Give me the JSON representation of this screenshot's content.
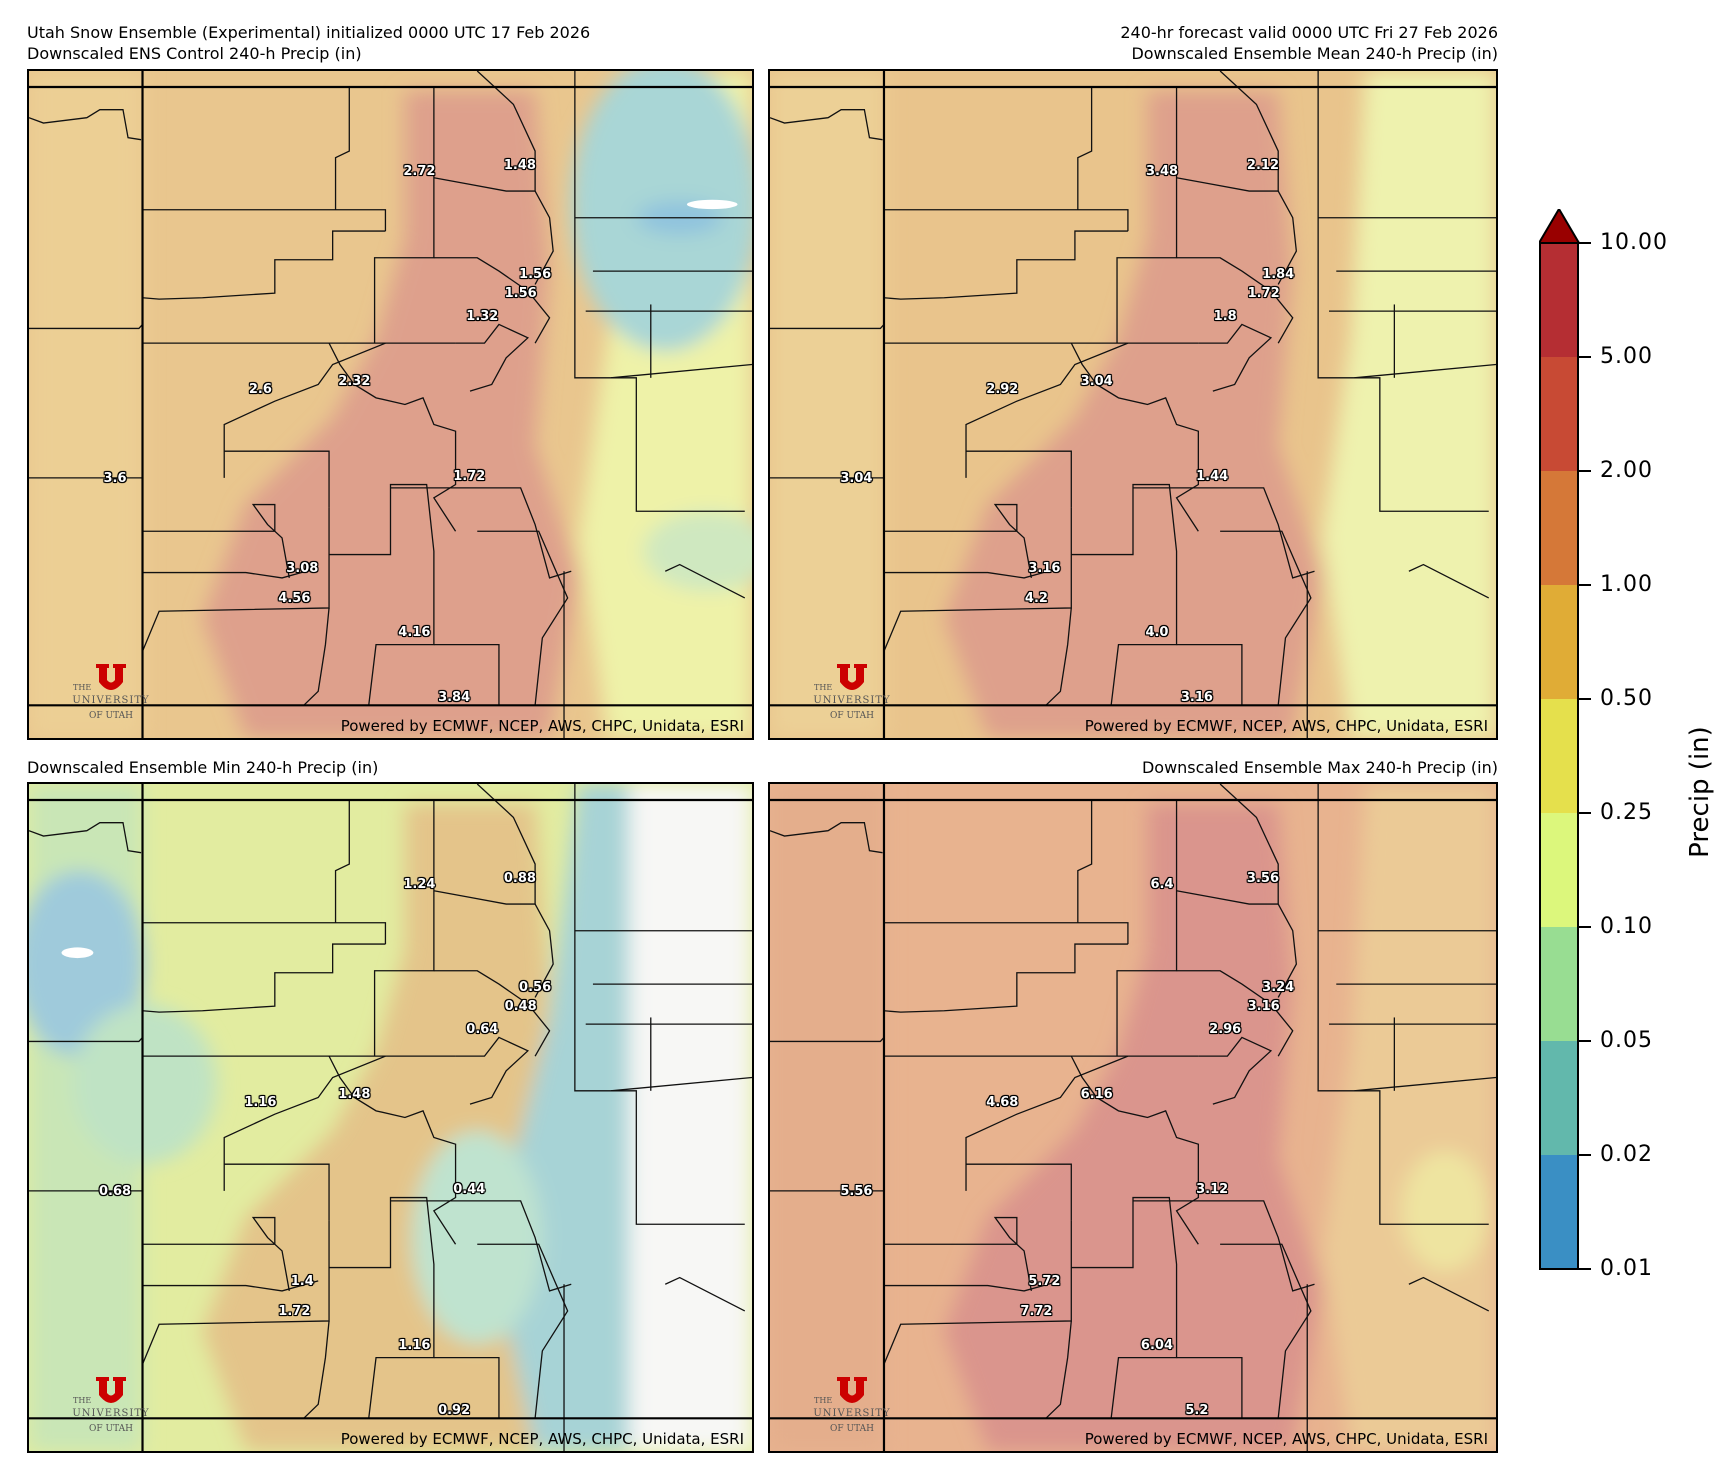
{
  "header": {
    "left_line1": "Utah Snow Ensemble (Experimental) initialized 0000 UTC 17 Feb 2026",
    "right_line1": "240-hr forecast valid 0000 UTC Fri 27 Feb 2026"
  },
  "panels": [
    {
      "title": "Downscaled ENS Control 240-h Precip (in)",
      "labels": [
        "2.72",
        "1.48",
        "1.56",
        "1.56",
        "1.32",
        "2.6",
        "2.32",
        "3.6",
        "1.72",
        "3.08",
        "4.56",
        "4.16",
        "3.84"
      ]
    },
    {
      "title": "Downscaled Ensemble Mean 240-h Precip (in)",
      "labels": [
        "3.48",
        "2.12",
        "1.84",
        "1.72",
        "1.8",
        "2.92",
        "3.04",
        "3.04",
        "1.44",
        "3.16",
        "4.2",
        "4.0",
        "3.16"
      ]
    },
    {
      "title": "Downscaled Ensemble Min 240-h Precip (in)",
      "labels": [
        "1.24",
        "0.88",
        "0.56",
        "0.48",
        "0.64",
        "1.16",
        "1.48",
        "0.68",
        "0.44",
        "1.4",
        "1.72",
        "1.16",
        "0.92"
      ]
    },
    {
      "title": "Downscaled Ensemble Max 240-h Precip (in)",
      "labels": [
        "6.4",
        "3.56",
        "3.24",
        "3.16",
        "2.96",
        "4.68",
        "6.16",
        "5.56",
        "3.12",
        "5.72",
        "7.72",
        "6.04",
        "5.2"
      ]
    }
  ],
  "credit": "Powered by ECMWF, NCEP, AWS, CHPC, Unidata, ESRI",
  "logo": {
    "the": "THE",
    "university": "UNIVERSITY",
    "of_utah": "OF UTAH",
    "color": "#cc0000"
  },
  "colorbar": {
    "label": "Precip (in)",
    "ticks": [
      "10.00",
      "5.00",
      "2.00",
      "1.00",
      "0.50",
      "0.25",
      "0.10",
      "0.05",
      "0.02",
      "0.01"
    ],
    "colors": [
      "#b52e33",
      "#c84a34",
      "#d57838",
      "#e0ac36",
      "#e5e04c",
      "#dcf77c",
      "#98dd92",
      "#62b8ac",
      "#3a8fc4"
    ],
    "extend_color": "#990000",
    "extend": "max"
  }
}
